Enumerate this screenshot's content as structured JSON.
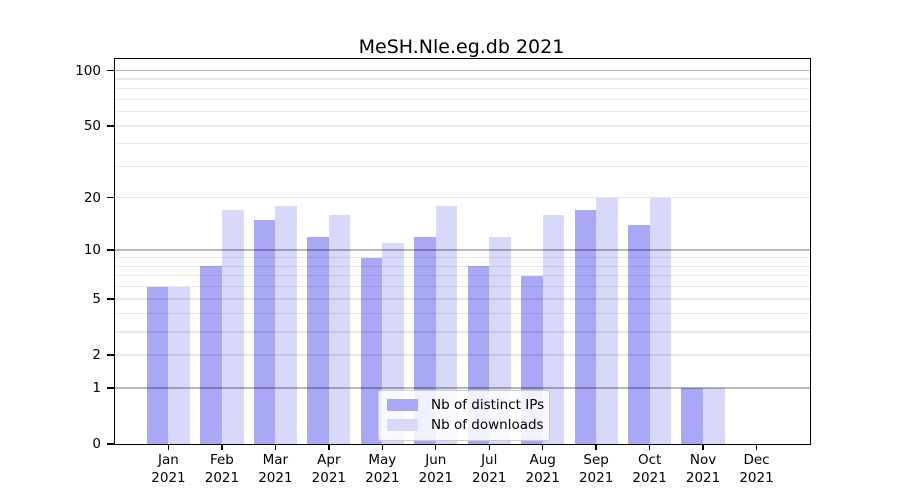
{
  "chart_data": {
    "type": "bar",
    "title": "MeSH.Nle.eg.db 2021",
    "categories": [
      "Jan",
      "Feb",
      "Mar",
      "Apr",
      "May",
      "Jun",
      "Jul",
      "Aug",
      "Sep",
      "Oct",
      "Nov",
      "Dec"
    ],
    "x_tick_label_line2": "2021",
    "series": [
      {
        "name": "Nb of distinct IPs",
        "color": "#a8a8f6",
        "values": [
          6,
          8,
          15,
          12,
          9,
          12,
          8,
          7,
          17,
          14,
          1,
          0
        ]
      },
      {
        "name": "Nb of downloads",
        "color": "#d8d8fa",
        "values": [
          6,
          17,
          18,
          16,
          11,
          18,
          12,
          16,
          20,
          20,
          1,
          0
        ]
      }
    ],
    "yscale": "log10(1+value)",
    "ylim": [
      0,
      110
    ],
    "y_tick_labels": [
      100,
      50,
      20,
      10,
      5,
      2,
      1,
      0
    ],
    "gridlines_major": [
      1,
      10,
      100
    ],
    "gridlines_minor": [
      2,
      3,
      4,
      5,
      6,
      7,
      8,
      9,
      20,
      30,
      40,
      50,
      60,
      70,
      80,
      90
    ],
    "grid": true,
    "legend_position": "lower center",
    "xlabel": "",
    "ylabel": ""
  },
  "colors": {
    "bar_ips": "#a8a8f6",
    "bar_downloads": "#d8d8fa",
    "grid_major": "#b5b5b5",
    "grid_minor": "#e8e8e8",
    "legend_border": "#cccccc",
    "axis": "#000000"
  }
}
